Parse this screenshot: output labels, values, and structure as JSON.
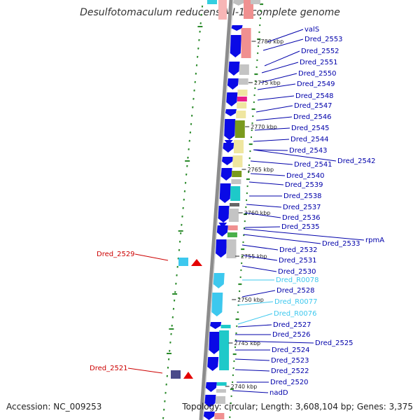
{
  "title": "Desulfotomaculum reducens MI-1, complete genome",
  "footer": {
    "accession": "Accession: NC_009253",
    "summary": "Topology: circular; Length: 3,608,104 bp; Genes: 3,375"
  },
  "colors": {
    "forward_gene": "#0a0ae6",
    "trna": "#3dc8ee",
    "rrna_label": "#cc0000",
    "cog_none": "#c4c4c4",
    "cog_teal": "#1ec9c9",
    "cog_olive": "#7a9a1e",
    "cog_pale_yellow": "#efe6a0",
    "cog_pink": "#f09090",
    "cog_magenta": "#e8208a"
  },
  "kbp_ticks": [
    "2780 kbp",
    "2775 kbp",
    "2770 kbp",
    "2765 kbp",
    "2760 kbp",
    "2755 kbp",
    "2750 kbp",
    "2745 kbp",
    "2740 kbp"
  ],
  "genes": [
    {
      "label": "valS",
      "kind": "cds"
    },
    {
      "label": "Dred_2553",
      "kind": "cds"
    },
    {
      "label": "Dred_2552",
      "kind": "cds"
    },
    {
      "label": "Dred_2551",
      "kind": "cds"
    },
    {
      "label": "Dred_2550",
      "kind": "cds"
    },
    {
      "label": "Dred_2549",
      "kind": "cds"
    },
    {
      "label": "Dred_2548",
      "kind": "cds"
    },
    {
      "label": "Dred_2547",
      "kind": "cds"
    },
    {
      "label": "Dred_2546",
      "kind": "cds"
    },
    {
      "label": "Dred_2545",
      "kind": "cds"
    },
    {
      "label": "Dred_2544",
      "kind": "cds"
    },
    {
      "label": "Dred_2543",
      "kind": "cds"
    },
    {
      "label": "Dred_2542",
      "kind": "cds"
    },
    {
      "label": "Dred_2541",
      "kind": "cds"
    },
    {
      "label": "Dred_2540",
      "kind": "cds"
    },
    {
      "label": "Dred_2539",
      "kind": "cds"
    },
    {
      "label": "Dred_2538",
      "kind": "cds"
    },
    {
      "label": "Dred_2537",
      "kind": "cds"
    },
    {
      "label": "Dred_2536",
      "kind": "cds"
    },
    {
      "label": "Dred_2535",
      "kind": "cds"
    },
    {
      "label": "rpmA",
      "kind": "cds"
    },
    {
      "label": "Dred_2533",
      "kind": "cds"
    },
    {
      "label": "Dred_2532",
      "kind": "cds"
    },
    {
      "label": "Dred_2531",
      "kind": "cds"
    },
    {
      "label": "Dred_2530",
      "kind": "cds"
    },
    {
      "label": "Dred_R0078",
      "kind": "trna"
    },
    {
      "label": "Dred_2528",
      "kind": "cds"
    },
    {
      "label": "Dred_R0077",
      "kind": "trna"
    },
    {
      "label": "Dred_R0076",
      "kind": "trna"
    },
    {
      "label": "Dred_2527",
      "kind": "cds"
    },
    {
      "label": "Dred_2526",
      "kind": "cds"
    },
    {
      "label": "Dred_2525",
      "kind": "cds"
    },
    {
      "label": "Dred_2524",
      "kind": "cds"
    },
    {
      "label": "Dred_2523",
      "kind": "cds"
    },
    {
      "label": "Dred_2522",
      "kind": "cds"
    },
    {
      "label": "Dred_2520",
      "kind": "cds"
    },
    {
      "label": "nadD",
      "kind": "cds"
    },
    {
      "label": "Dred_2529",
      "kind": "reverse"
    },
    {
      "label": "Dred_2521",
      "kind": "reverse"
    }
  ]
}
